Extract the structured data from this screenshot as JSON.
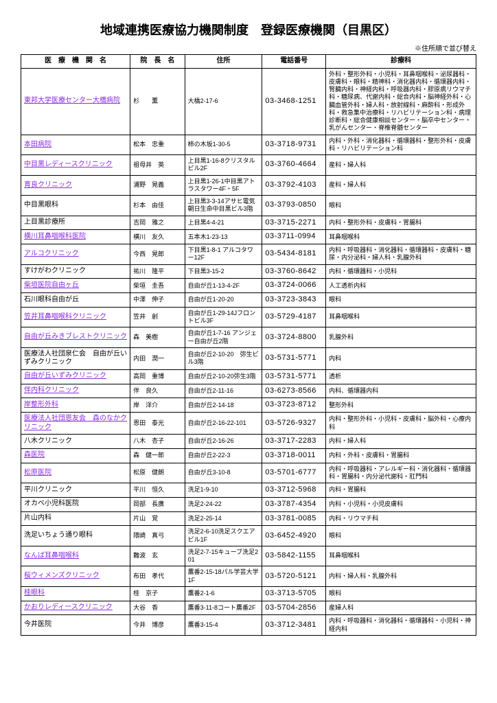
{
  "title": "地域連携医療協力機関制度　登録医療機関（目黒区）",
  "sort_note": "※住所順で並び替え",
  "columns": [
    "医　療　機　関　名",
    "院　長　名",
    "住所",
    "電話番号",
    "診療科"
  ],
  "link_color": "#8a2be2",
  "border_color": "#000000",
  "rows": [
    {
      "name": "東邦大学医療センター大橋病院",
      "link": true,
      "director": "杉　　薫",
      "address": "大橋2-17-6",
      "tel": "03-3468-1251",
      "dept": "外科・整形外科・小児科・耳鼻咽喉科・泌尿器科・皮膚科・眼科・精神科・消化器内科・循環器内科・腎臓内科・神経内科・呼吸器内科・膠原病リウマチ科・糖尿病、代謝内科・総合内科・脳神経外科・心臓血管外科・婦人科・放射線科・麻酔科・形成外科・救急集中治療科・リハビリテーション科・病理診断科・総合健康相談センター・脳卒中センター・乳がんセンター・脊椎脊髄センター",
      "tall": true
    },
    {
      "name": "本田病院",
      "link": true,
      "director": "松本　忠重",
      "address": "柿の木坂1-30-5",
      "tel": "03-3718-9731",
      "dept": "内科・外科・消化器科・循環器科・整形外科・皮膚科・リハビリテーション科"
    },
    {
      "name": "中目黒レディースクリニック",
      "link": true,
      "director": "祖母井　英",
      "address": "上目黒1-16-8クリスタルビル2F",
      "tel": "03-3760-4664",
      "dept": "産科・婦人科"
    },
    {
      "name": "育良クリニック",
      "link": true,
      "director": "浦野　晃義",
      "address": "上目黒1-26-1中目黒アトラスタワー4F・5F",
      "tel": "03-3792-4103",
      "dept": "産科・婦人科"
    },
    {
      "name": "中目黒眼科",
      "link": false,
      "director": "杉本　由佳",
      "address": "上目黒3-3-14アサヒ電気朝日生命中目黒ビル3階",
      "tel": "03-3793-0850",
      "dept": "眼科"
    },
    {
      "name": "上目黒診療所",
      "link": false,
      "director": "吉岡　雅之",
      "address": "上目黒4-4-21",
      "tel": "03-3715-2271",
      "dept": "内科・整形外科・皮膚科・胃腸科"
    },
    {
      "name": "横川耳鼻咽喉科医院",
      "link": true,
      "director": "横川　友久",
      "address": "五本木1-23-13",
      "tel": "03-3711-0994",
      "dept": "耳鼻咽喉科"
    },
    {
      "name": "アルコクリニック",
      "link": true,
      "director": "今西　晃郎",
      "address": "下目黒1-8-1\nアルコタワー12F",
      "tel": "03-5434-8181",
      "dept": "内科・呼吸器科・消化器科・循環器科・皮膚科・糖尿・内分泌科・婦人科・乳腺外科"
    },
    {
      "name": "すけがわクリニック",
      "link": false,
      "director": "祐川　隆平",
      "address": "下目黒3-15-2",
      "tel": "03-3760-8642",
      "dept": "内科・循環器科・小児科"
    },
    {
      "name": "柴垣医院自由ヶ丘",
      "link": true,
      "director": "柴垣　圭吾",
      "address": "自由が丘1-13-4-2F",
      "tel": "03-3724-0066",
      "dept": "人工透析内科"
    },
    {
      "name": "石川眼科自由が丘",
      "link": false,
      "director": "中澤　伸子",
      "address": "自由が丘1-20-20",
      "tel": "03-3723-3843",
      "dept": "眼科"
    },
    {
      "name": "笠井耳鼻咽喉科クリニック",
      "link": true,
      "director": "笠井　創",
      "address": "自由が丘1-29-14Jフロントビル3F",
      "tel": "03-5729-4187",
      "dept": "耳鼻咽喉科"
    },
    {
      "name": "自由が丘みきブレストクリニック",
      "link": true,
      "director": "森　美樹",
      "address": "自由が丘1-7-16\nアンジェー自由が丘2階",
      "tel": "03-3724-8800",
      "dept": "乳腺外科"
    },
    {
      "name": "医療法人社団泉仁会　自由が丘いずみクリニック",
      "link": false,
      "director": "内田　潤一",
      "address": "自由が丘2-10-20　弥生ビル3階",
      "tel": "03-5731-5771",
      "dept": "内科"
    },
    {
      "name": "自由が丘いずみクリニック",
      "link": true,
      "director": "高岡　重博",
      "address": "自由が丘2-10-20弥生3階",
      "tel": "03-5731-5771",
      "dept": "透析"
    },
    {
      "name": "伴内科クリニック",
      "link": true,
      "director": "伴　良久",
      "address": "自由が丘2-11-16",
      "tel": "03-6273-8566",
      "dept": "内科、循環器内科"
    },
    {
      "name": "岸整形外科",
      "link": true,
      "director": "岸　洋介",
      "address": "自由が丘2-14-18",
      "tel": "03-3723-8712",
      "dept": "整形外科"
    },
    {
      "name": "医療法人社団恩友会　森のなかクリニック",
      "link": true,
      "director": "恩田　泰光",
      "address": "自由が丘2-16-22-101",
      "tel": "03-5726-9327",
      "dept": "内科・整形外科・小児科・皮膚科・脳外科・心療内科"
    },
    {
      "name": "八木クリニック",
      "link": false,
      "director": "八木　杏子",
      "address": "自由が丘2-16-26",
      "tel": "03-3717-2283",
      "dept": "内科・婦人科"
    },
    {
      "name": "森医院",
      "link": true,
      "director": "森　健一郎",
      "address": "自由が丘2-22-3",
      "tel": "03-3718-0011",
      "dept": "内科・外科・皮膚科・胃腸科"
    },
    {
      "name": "松原医院",
      "link": true,
      "director": "松原　健朗",
      "address": "自由が丘3-10-8",
      "tel": "03-5701-6777",
      "dept": "内科・呼吸器科・アレルギー科・消化器科・循環器科・胃腸科・内分泌代謝科・肛門科"
    },
    {
      "name": "平川クリニック",
      "link": false,
      "director": "平川　恒久",
      "address": "洗足1-9-10",
      "tel": "03-3712-5968",
      "dept": "内科・胃腸科"
    },
    {
      "name": "オカベ小児科医院",
      "link": false,
      "director": "岡部　長廣",
      "address": "洗足2-24-22",
      "tel": "03-3787-4354",
      "dept": "内科・小児科・小児皮膚科"
    },
    {
      "name": "片山内科",
      "link": false,
      "director": "片山　覚",
      "address": "洗足2-25-14",
      "tel": "03-3781-0085",
      "dept": "内科・リウマチ科"
    },
    {
      "name": "洗足いちょう通り眼科",
      "link": false,
      "director": "隈崎　真弓",
      "address": "洗足2-6-10洗足スクエアビル1F",
      "tel": "03-6452-4920",
      "dept": "眼科"
    },
    {
      "name": "なんば耳鼻咽喉科",
      "link": true,
      "director": "難波　玄",
      "address": "洗足2-7-15キューブ洗足201",
      "tel": "03-5842-1155",
      "dept": "耳鼻咽喉科"
    },
    {
      "name": "桜ウィメンズクリニック",
      "link": true,
      "director": "布田　孝代",
      "address": "鷹番2-15-18パル学芸大学1F",
      "tel": "03-5720-5121",
      "dept": "内科・婦人科・乳腺外科"
    },
    {
      "name": "桂眼科",
      "link": true,
      "director": "桂　京子",
      "address": "鷹番2-1-6",
      "tel": "03-3713-5705",
      "dept": "眼科"
    },
    {
      "name": "かおりレディースクリニック",
      "link": true,
      "director": "大谷　香",
      "address": "鷹番3-11-8コート鷹番2F",
      "tel": "03-5704-2856",
      "dept": "産婦人科"
    },
    {
      "name": "今井医院",
      "link": false,
      "director": "今井　博彦",
      "address": "鷹番3-15-4",
      "tel": "03-3712-3481",
      "dept": "内科・呼吸器科・消化器科・循環器科・小児科・神経内科"
    }
  ]
}
